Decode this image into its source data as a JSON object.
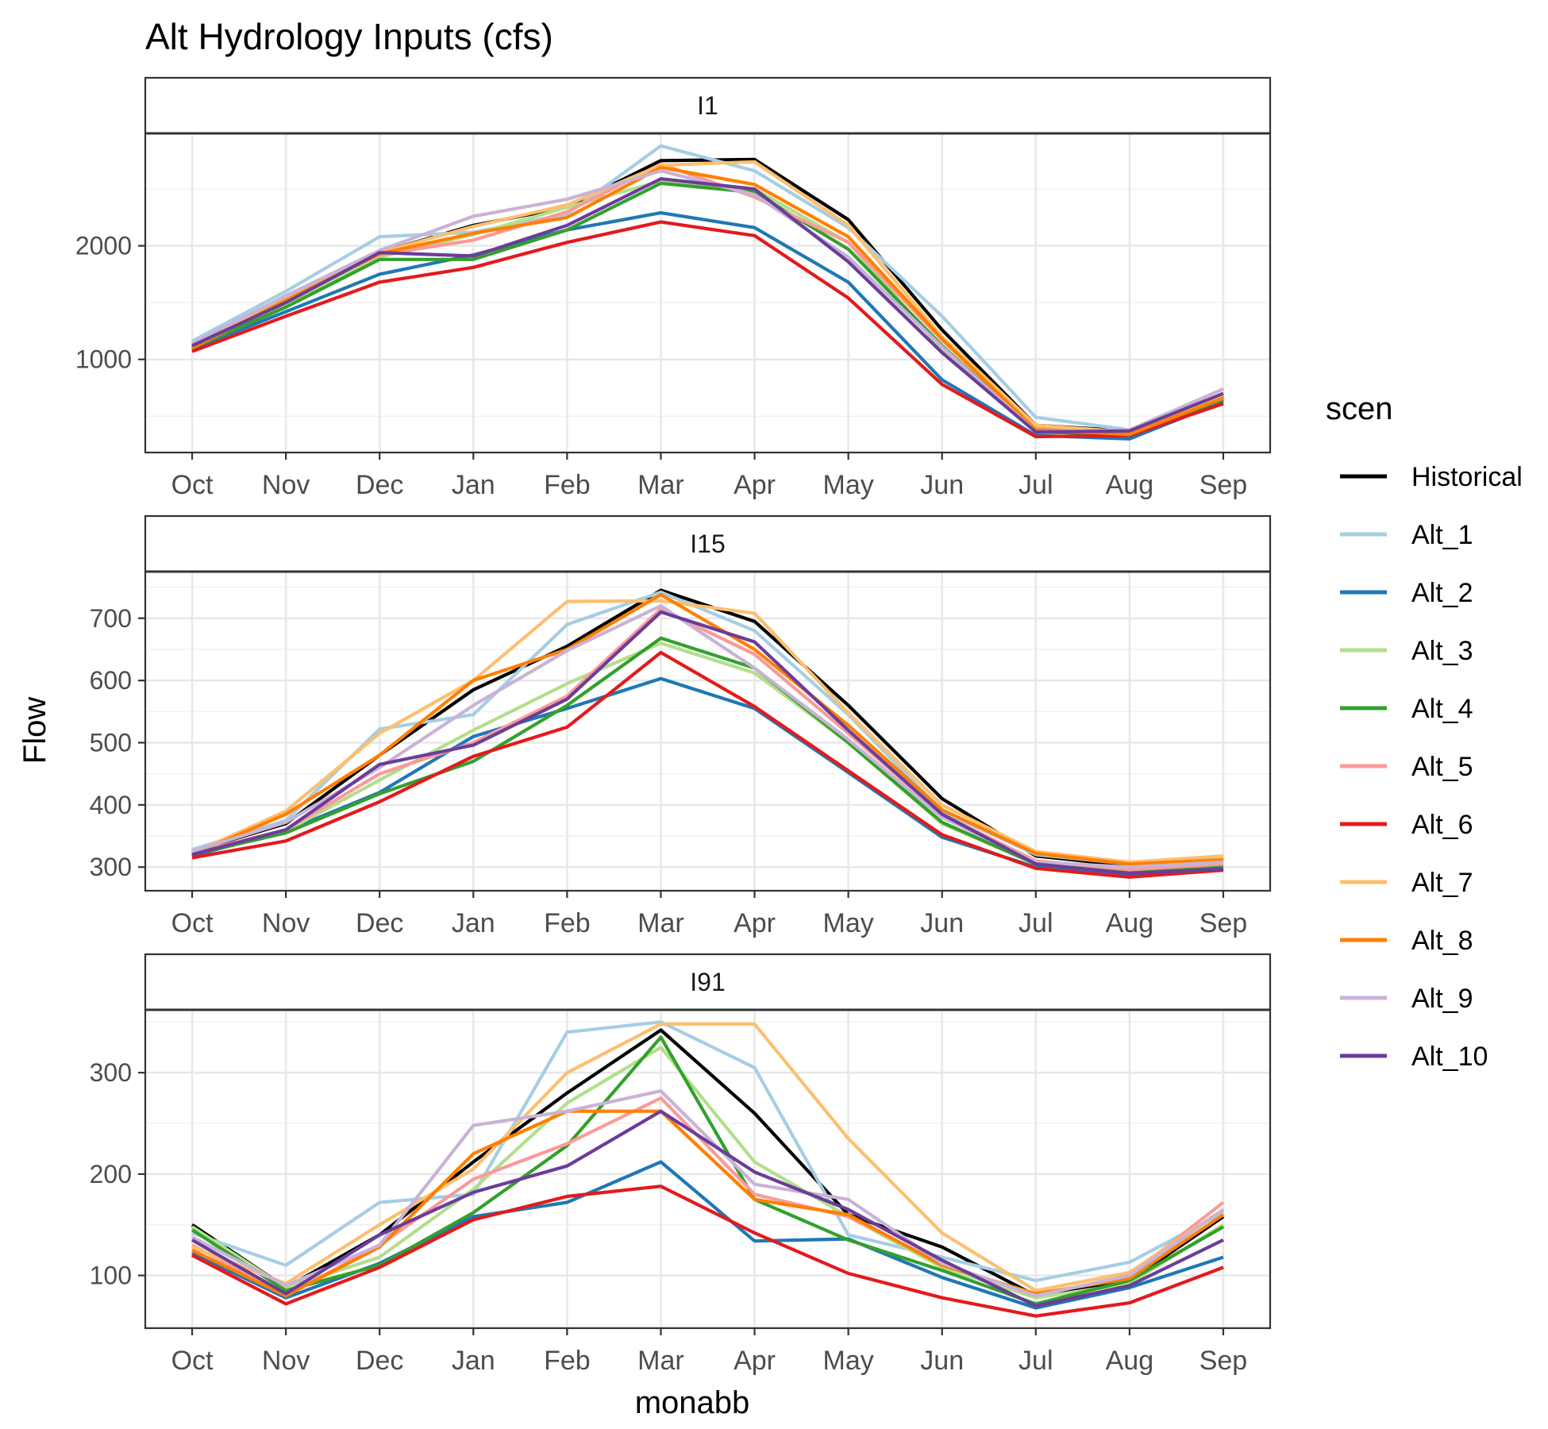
{
  "chart_data": {
    "type": "line",
    "title": "Alt Hydrology Inputs (cfs)",
    "xlabel": "monabb",
    "ylabel": "Flow",
    "grid": true,
    "legend_placement": "right",
    "legend_title": "scen",
    "categories": [
      "Oct",
      "Nov",
      "Dec",
      "Jan",
      "Feb",
      "Mar",
      "Apr",
      "May",
      "Jun",
      "Jul",
      "Aug",
      "Sep"
    ],
    "series_styles": [
      {
        "name": "Historical",
        "color": "#000000"
      },
      {
        "name": "Alt_1",
        "color": "#A6CEE3"
      },
      {
        "name": "Alt_2",
        "color": "#1F78B4"
      },
      {
        "name": "Alt_3",
        "color": "#B2DF8A"
      },
      {
        "name": "Alt_4",
        "color": "#33A02C"
      },
      {
        "name": "Alt_5",
        "color": "#FB9A99"
      },
      {
        "name": "Alt_6",
        "color": "#E31A1C"
      },
      {
        "name": "Alt_7",
        "color": "#FDBF6F"
      },
      {
        "name": "Alt_8",
        "color": "#FF7F00"
      },
      {
        "name": "Alt_9",
        "color": "#CAB2D6"
      },
      {
        "name": "Alt_10",
        "color": "#6A3D9A"
      }
    ],
    "panels": [
      {
        "label": "I1",
        "ylim": [
          180,
          2990
        ],
        "yticks": [
          1000,
          2000
        ],
        "series": [
          {
            "name": "Historical",
            "values": [
              1120,
              1560,
              1940,
              2180,
              2340,
              2750,
              2760,
              2230,
              1260,
              420,
              370,
              680
            ]
          },
          {
            "name": "Alt_1",
            "values": [
              1160,
              1600,
              2080,
              2120,
              2280,
              2880,
              2660,
              2160,
              1380,
              490,
              380,
              690
            ]
          },
          {
            "name": "Alt_2",
            "values": [
              1090,
              1420,
              1750,
              1920,
              2140,
              2290,
              2160,
              1680,
              820,
              330,
              300,
              630
            ]
          },
          {
            "name": "Alt_3",
            "values": [
              1100,
              1490,
              1900,
              2100,
              2340,
              2570,
              2500,
              2030,
              1080,
              380,
              340,
              660
            ]
          },
          {
            "name": "Alt_4",
            "values": [
              1100,
              1460,
              1880,
              1880,
              2140,
              2550,
              2470,
              1970,
              1120,
              360,
              340,
              650
            ]
          },
          {
            "name": "Alt_5",
            "values": [
              1120,
              1540,
              1920,
              2050,
              2300,
              2720,
              2430,
              2030,
              1170,
              390,
              350,
              660
            ]
          },
          {
            "name": "Alt_6",
            "values": [
              1070,
              1380,
              1680,
              1810,
              2030,
              2210,
              2090,
              1540,
              780,
              320,
              330,
              610
            ]
          },
          {
            "name": "Alt_7",
            "values": [
              1140,
              1540,
              1940,
              2170,
              2360,
              2710,
              2740,
              2180,
              1200,
              420,
              360,
              670
            ]
          },
          {
            "name": "Alt_8",
            "values": [
              1100,
              1520,
              1930,
              2110,
              2250,
              2690,
              2540,
              2080,
              1180,
              380,
              340,
              660
            ]
          },
          {
            "name": "Alt_9",
            "values": [
              1140,
              1560,
              1960,
              2260,
              2410,
              2660,
              2450,
              1900,
              1110,
              360,
              380,
              740
            ]
          },
          {
            "name": "Alt_10",
            "values": [
              1120,
              1500,
              1940,
              1910,
              2180,
              2590,
              2500,
              1860,
              1060,
              360,
              370,
              700
            ]
          }
        ]
      },
      {
        "label": "I15",
        "ylim": [
          262,
          775
        ],
        "yticks": [
          300,
          400,
          500,
          600,
          700
        ],
        "series": [
          {
            "name": "Historical",
            "values": [
              325,
              370,
              480,
              585,
              655,
              745,
              695,
              560,
              410,
              318,
              302,
              312
            ]
          },
          {
            "name": "Alt_1",
            "values": [
              328,
              375,
              522,
              545,
              690,
              742,
              680,
              545,
              390,
              320,
              305,
              312
            ]
          },
          {
            "name": "Alt_2",
            "values": [
              318,
              358,
              420,
              510,
              555,
              603,
              555,
              452,
              348,
              300,
              288,
              298
            ]
          },
          {
            "name": "Alt_3",
            "values": [
              322,
              358,
              440,
              520,
              595,
              660,
              612,
              500,
              370,
              305,
              294,
              305
            ]
          },
          {
            "name": "Alt_4",
            "values": [
              320,
              355,
              418,
              470,
              560,
              668,
              620,
              500,
              372,
              305,
              292,
              300
            ]
          },
          {
            "name": "Alt_5",
            "values": [
              322,
              360,
              450,
              500,
              575,
              715,
              642,
              515,
              385,
              310,
              296,
              305
            ]
          },
          {
            "name": "Alt_6",
            "values": [
              315,
              342,
              405,
              478,
              525,
              645,
              558,
              455,
              352,
              298,
              284,
              295
            ]
          },
          {
            "name": "Alt_7",
            "values": [
              322,
              390,
              515,
              600,
              727,
              728,
              708,
              548,
              400,
              325,
              308,
              318
            ]
          },
          {
            "name": "Alt_8",
            "values": [
              320,
              385,
              480,
              600,
              650,
              738,
              650,
              528,
              392,
              322,
              305,
              312
            ]
          },
          {
            "name": "Alt_9",
            "values": [
              325,
              372,
              460,
              560,
              648,
              720,
              620,
              505,
              380,
              308,
              300,
              308
            ]
          },
          {
            "name": "Alt_10",
            "values": [
              320,
              360,
              465,
              496,
              570,
              710,
              662,
              520,
              385,
              305,
              290,
              297
            ]
          }
        ]
      },
      {
        "label": "I91",
        "ylim": [
          48,
          362
        ],
        "yticks": [
          100,
          200,
          300
        ],
        "series": [
          {
            "name": "Historical",
            "values": [
              150,
              88,
              140,
              212,
              280,
              342,
              260,
              160,
              128,
              80,
              95,
              158
            ]
          },
          {
            "name": "Alt_1",
            "values": [
              142,
              110,
              172,
              180,
              340,
              350,
              305,
              140,
              118,
              95,
              113,
              162
            ]
          },
          {
            "name": "Alt_2",
            "values": [
              122,
              78,
              112,
              158,
              172,
              212,
              134,
              136,
              98,
              68,
              88,
              118
            ]
          },
          {
            "name": "Alt_3",
            "values": [
              148,
              88,
              118,
              185,
              270,
              325,
              212,
              158,
              108,
              78,
              92,
              150
            ]
          },
          {
            "name": "Alt_4",
            "values": [
              145,
              85,
              110,
              162,
              228,
              335,
              175,
              135,
              105,
              72,
              95,
              148
            ]
          },
          {
            "name": "Alt_5",
            "values": [
              130,
              80,
              130,
              195,
              230,
              275,
              180,
              158,
              112,
              80,
              100,
              172
            ]
          },
          {
            "name": "Alt_6",
            "values": [
              120,
              72,
              108,
              155,
              178,
              188,
              142,
              102,
              78,
              60,
              73,
              108
            ]
          },
          {
            "name": "Alt_7",
            "values": [
              128,
              92,
              150,
              205,
              300,
              348,
              348,
              235,
              142,
              85,
              103,
              165
            ]
          },
          {
            "name": "Alt_8",
            "values": [
              125,
              80,
              128,
              220,
              262,
              262,
              175,
              160,
              110,
              82,
              97,
              160
            ]
          },
          {
            "name": "Alt_9",
            "values": [
              138,
              90,
              130,
              248,
              262,
              282,
              190,
              175,
              112,
              80,
              100,
              165
            ]
          },
          {
            "name": "Alt_10",
            "values": [
              135,
              82,
              140,
              182,
              208,
              262,
              202,
              165,
              115,
              70,
              90,
              135
            ]
          }
        ]
      }
    ]
  }
}
